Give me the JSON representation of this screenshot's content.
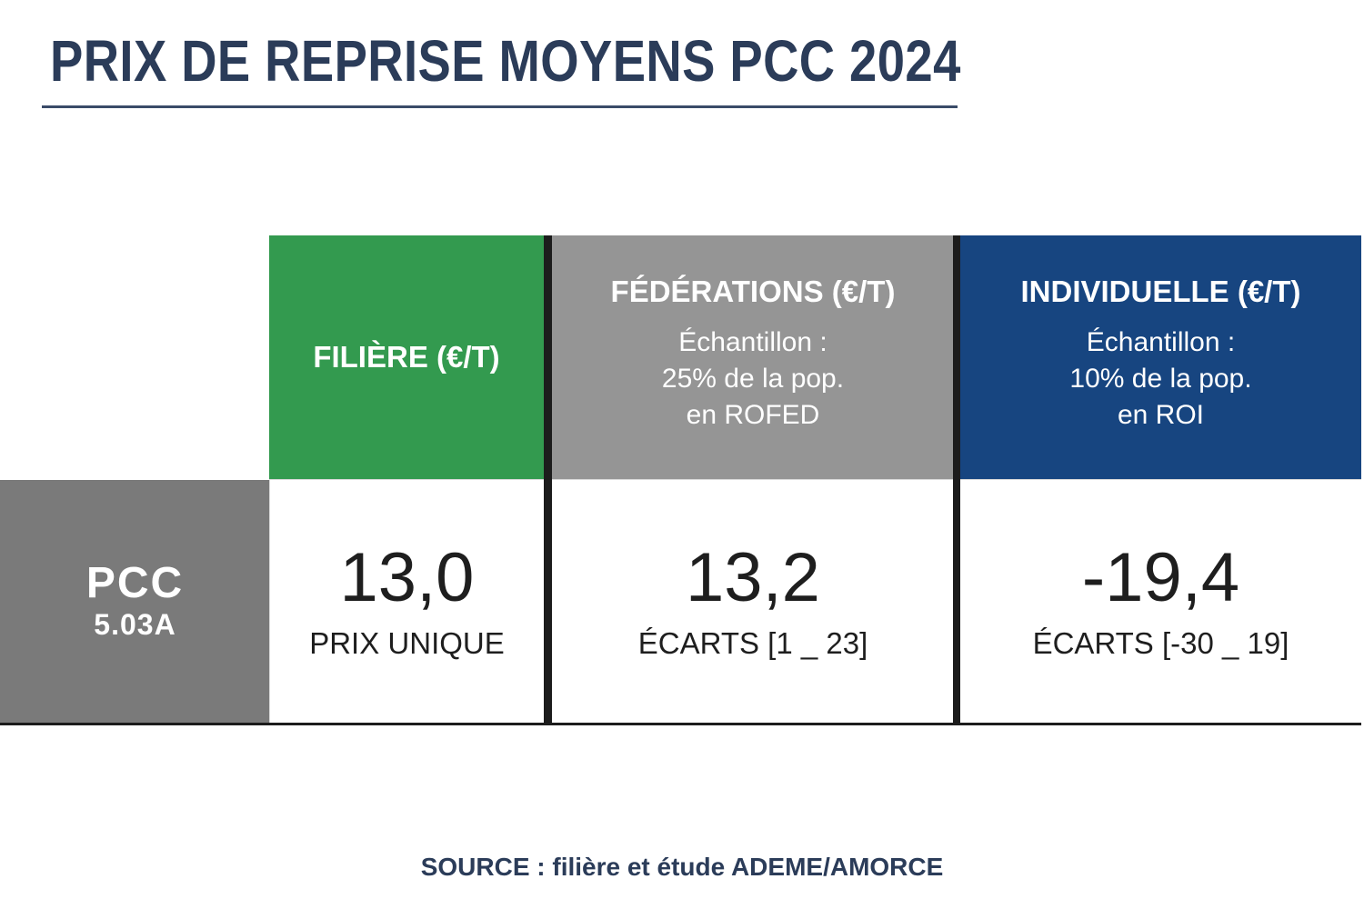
{
  "page": {
    "title": "PRIX DE REPRISE MOYENS PCC 2024",
    "source": "SOURCE : filière et étude ADEME/AMORCE"
  },
  "colors": {
    "navy_text": "#2B3C59",
    "green_header": "#339A4F",
    "gray_header": "#959595",
    "blue_header": "#174580",
    "row_label_gray": "#7A7A7A",
    "divider_black": "#1C1C1C",
    "value_text": "#1E1E1E"
  },
  "table": {
    "row": {
      "label": "PCC",
      "sublabel": "5.03A"
    },
    "columns": [
      {
        "key": "filiere",
        "header": "FILIÈRE (€/T)",
        "value": "13,0",
        "value_label": "PRIX UNIQUE"
      },
      {
        "key": "federations",
        "header": "FÉDÉRATIONS (€/T)",
        "subheader": [
          "Échantillon :",
          "25% de la pop.",
          "en ROFED"
        ],
        "value": "13,2",
        "value_label": "ÉCARTS [1 _ 23]"
      },
      {
        "key": "individuelle",
        "header": "INDIVIDUELLE (€/T)",
        "subheader": [
          "Échantillon :",
          "10% de la pop.",
          "en ROI"
        ],
        "value": "-19,4",
        "value_label": "ÉCARTS [-30 _ 19]"
      }
    ]
  },
  "chart_data": {
    "type": "table",
    "title": "PRIX DE REPRISE MOYENS PCC 2024",
    "row_labels": [
      "PCC 5.03A"
    ],
    "columns": [
      "FILIÈRE (€/T)",
      "FÉDÉRATIONS (€/T)",
      "INDIVIDUELLE (€/T)"
    ],
    "values_eur_per_tonne": [
      [
        13.0,
        13.2,
        -19.4
      ]
    ],
    "column_notes": [
      "PRIX UNIQUE",
      "Échantillon : 25% de la pop. en ROFED — ÉCARTS [1 _ 23]",
      "Échantillon : 10% de la pop. en ROI — ÉCARTS [-30 _ 19]"
    ],
    "source": "SOURCE : filière et étude ADEME/AMORCE"
  }
}
